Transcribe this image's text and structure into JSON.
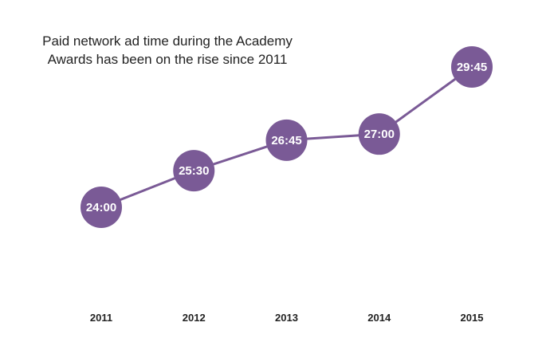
{
  "colors": {
    "series": "#7a5a96",
    "line": "#7a5a96"
  },
  "chart_data": {
    "type": "line",
    "title": "Paid network ad time during the Academy\nAwards has been on the rise since 2011",
    "xlabel": "",
    "ylabel": "",
    "categories": [
      "2011",
      "2012",
      "2013",
      "2014",
      "2015"
    ],
    "series": [
      {
        "values": [
          24.0,
          25.5,
          26.75,
          27.0,
          29.75
        ],
        "labels": [
          "24:00",
          "25:30",
          "26:45",
          "27:00",
          "29:45"
        ]
      }
    ],
    "grid": false,
    "legend": "none"
  }
}
